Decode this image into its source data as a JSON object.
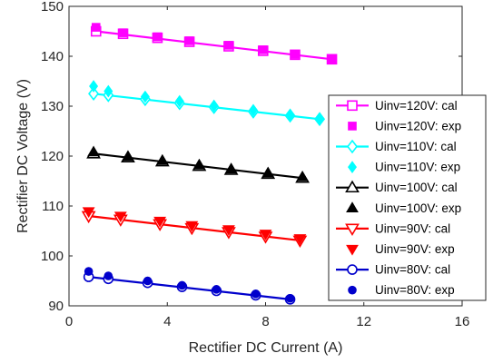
{
  "chart_data": {
    "type": "line",
    "xlabel": "Rectifier DC Current (A)",
    "ylabel": "Rectifier DC Voltage (V)",
    "xlim": [
      0,
      16
    ],
    "ylim": [
      90,
      150
    ],
    "xticks": [
      0,
      4,
      8,
      12,
      16
    ],
    "yticks": [
      90,
      100,
      110,
      120,
      130,
      140,
      150
    ],
    "grid": false,
    "legend_position": "right",
    "series": [
      {
        "name": "Uinv=120V: cal",
        "kind": "line",
        "marker": "square",
        "color": "#ff00ff",
        "x": [
          1.1,
          2.2,
          3.6,
          4.9,
          6.5,
          7.9,
          9.2,
          10.7
        ],
        "y": [
          145.0,
          144.5,
          143.7,
          142.9,
          142.0,
          141.1,
          140.3,
          139.4
        ]
      },
      {
        "name": "Uinv=120V: exp",
        "kind": "points",
        "marker": "filled-square",
        "color": "#ff00ff",
        "x": [
          1.1,
          2.2,
          3.6,
          4.9,
          6.5,
          7.9,
          9.2,
          10.7
        ],
        "y": [
          145.8,
          144.7,
          143.9,
          143.1,
          142.2,
          141.3,
          140.4,
          139.5
        ]
      },
      {
        "name": "Uinv=110V: cal",
        "kind": "line",
        "marker": "diamond",
        "color": "#00ffff",
        "x": [
          1.0,
          1.6,
          3.1,
          4.5,
          5.9,
          7.5,
          9.0,
          10.2
        ],
        "y": [
          132.5,
          132.2,
          131.4,
          130.6,
          129.8,
          128.9,
          128.1,
          127.4
        ]
      },
      {
        "name": "Uinv=110V: exp",
        "kind": "points",
        "marker": "filled-diamond",
        "color": "#00ffff",
        "x": [
          1.0,
          1.6,
          3.1,
          4.5,
          5.9,
          7.5,
          9.0,
          10.2
        ],
        "y": [
          134.0,
          133.0,
          131.9,
          131.0,
          130.1,
          129.2,
          128.3,
          127.6
        ]
      },
      {
        "name": "Uinv=100V: cal",
        "kind": "line",
        "marker": "triangle-up",
        "color": "#000000",
        "x": [
          1.0,
          2.4,
          3.8,
          5.3,
          6.6,
          8.1,
          9.5
        ],
        "y": [
          120.5,
          119.7,
          118.9,
          118.0,
          117.2,
          116.4,
          115.6
        ]
      },
      {
        "name": "Uinv=100V: exp",
        "kind": "points",
        "marker": "filled-triangle-up",
        "color": "#000000",
        "x": [
          1.0,
          2.4,
          3.8,
          5.3,
          6.6,
          8.1,
          9.5
        ],
        "y": [
          120.8,
          119.9,
          119.1,
          118.2,
          117.4,
          116.6,
          115.8
        ]
      },
      {
        "name": "Uinv=90V: cal",
        "kind": "line",
        "marker": "triangle-down",
        "color": "#ff0000",
        "x": [
          0.8,
          2.1,
          3.7,
          5.0,
          6.5,
          8.0,
          9.4
        ],
        "y": [
          108.0,
          107.3,
          106.4,
          105.6,
          104.8,
          103.9,
          103.1
        ]
      },
      {
        "name": "Uinv=90V: exp",
        "kind": "points",
        "marker": "filled-triangle-down",
        "color": "#ff0000",
        "x": [
          0.8,
          2.1,
          3.7,
          5.0,
          6.5,
          8.0,
          9.4
        ],
        "y": [
          108.9,
          108.0,
          107.0,
          106.1,
          105.3,
          104.4,
          103.5
        ]
      },
      {
        "name": "Uinv=80V: cal",
        "kind": "line",
        "marker": "circle",
        "color": "#0000cc",
        "x": [
          0.8,
          1.6,
          3.2,
          4.6,
          6.0,
          7.6,
          9.0
        ],
        "y": [
          95.8,
          95.4,
          94.6,
          93.8,
          93.0,
          92.1,
          91.3
        ]
      },
      {
        "name": "Uinv=80V: exp",
        "kind": "points",
        "marker": "filled-circle",
        "color": "#0000cc",
        "x": [
          0.8,
          1.6,
          3.2,
          4.6,
          6.0,
          7.6,
          9.0
        ],
        "y": [
          96.9,
          96.0,
          95.0,
          94.1,
          93.3,
          92.4,
          91.5
        ]
      }
    ]
  }
}
